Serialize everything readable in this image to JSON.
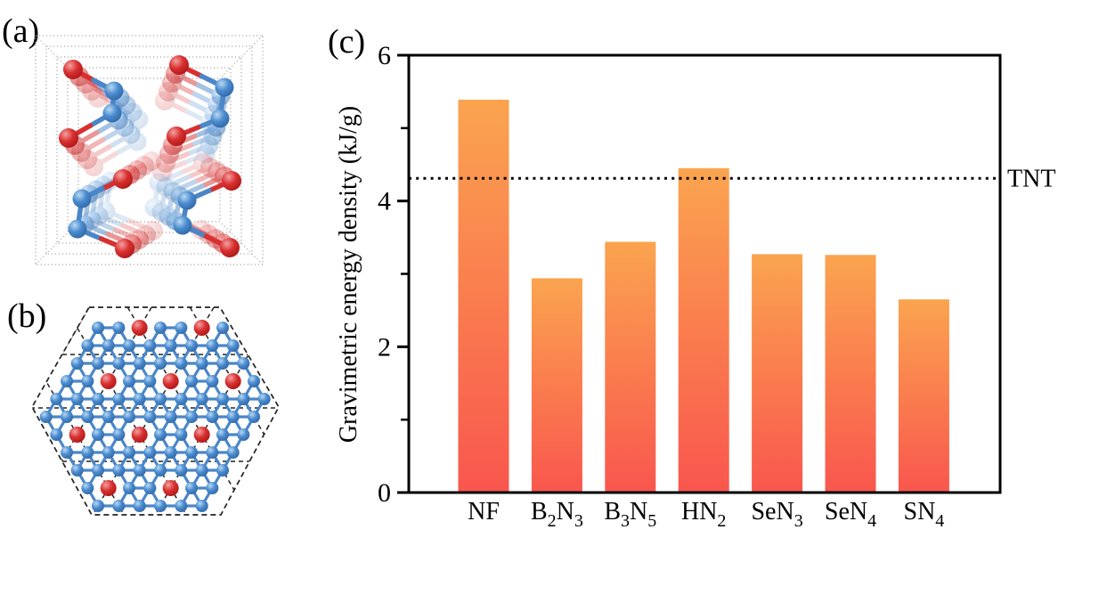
{
  "figure": {
    "type": "scientific-figure",
    "background": "#ffffff"
  },
  "panels": {
    "a": {
      "label": "(a)",
      "description": "side view of crystal cell with dotted perspective box, red and blue atom chains"
    },
    "b": {
      "label": "(b)",
      "description": "top view: dashed hexagon with triangular grid, blue atom network, red atoms in ring holes"
    },
    "c": {
      "label": "(c)",
      "description": "gravimetric energy density bar chart"
    }
  },
  "colors": {
    "bar_top": "#FAA44F",
    "bar_bottom": "#F9564E",
    "axis": "#000000",
    "atom_blue": "#4A8BD0",
    "atom_blue_light": "#B8D9F2",
    "atom_blue_dark": "#2B5F99",
    "bond_blue": "#4A86C8",
    "atom_red": "#D83030",
    "atom_red_light": "#F4A0A0",
    "atom_red_dark": "#A31212",
    "cell_dots": "#ABABAB",
    "hex_dash": "#222222"
  },
  "chart_data": {
    "type": "bar",
    "title": "",
    "categories": [
      "NF",
      "B_2N_3",
      "B_3N_5",
      "HN_2",
      "SeN_3",
      "SeN_4",
      "SN_4"
    ],
    "values": [
      5.39,
      2.94,
      3.44,
      4.45,
      3.27,
      3.26,
      2.65
    ],
    "xlabel": "",
    "ylabel": "Gravimetric energy density (kJ/g)",
    "ylim": [
      0,
      6
    ],
    "yticks": [
      0,
      2,
      4,
      6
    ],
    "minor_yticks": [
      1,
      3,
      5
    ],
    "reference_line": {
      "label": "TNT",
      "value": 4.31,
      "style": "dotted"
    },
    "grid": false,
    "legend": false,
    "bar_gradient": [
      "#FAA44F",
      "#F9564E"
    ]
  }
}
